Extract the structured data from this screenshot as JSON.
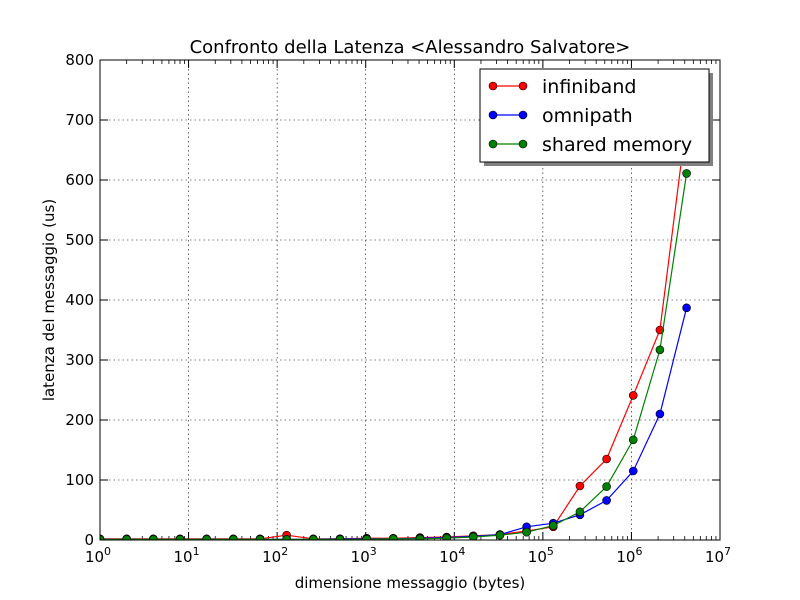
{
  "chart_data": {
    "type": "line",
    "title": "Confronto della Latenza <Alessandro Salvatore>",
    "xlabel": "dimensione messaggio (bytes)",
    "ylabel": "latenza del messaggio (us)",
    "xscale": "log",
    "xlim": [
      1,
      10000000
    ],
    "ylim": [
      0,
      800
    ],
    "grid": true,
    "legend_position": "top-right",
    "x_ticks": [
      {
        "base": "10",
        "exp": "0"
      },
      {
        "base": "10",
        "exp": "1"
      },
      {
        "base": "10",
        "exp": "2"
      },
      {
        "base": "10",
        "exp": "3"
      },
      {
        "base": "10",
        "exp": "4"
      },
      {
        "base": "10",
        "exp": "5"
      },
      {
        "base": "10",
        "exp": "6"
      },
      {
        "base": "10",
        "exp": "7"
      }
    ],
    "y_ticks": [
      "0",
      "100",
      "200",
      "300",
      "400",
      "500",
      "600",
      "700",
      "800"
    ],
    "x": [
      1,
      2,
      4,
      8,
      16,
      32,
      64,
      128,
      256,
      512,
      1024,
      2048,
      4096,
      8192,
      16384,
      32768,
      65536,
      131072,
      262144,
      524288,
      1048576,
      2097152,
      4194304
    ],
    "series": [
      {
        "name": "infiniband",
        "color": "#ff0000",
        "values": [
          2,
          2,
          2,
          2,
          2,
          2,
          2,
          8,
          2,
          2,
          3,
          3,
          4,
          5,
          7,
          9,
          15,
          22,
          90,
          135,
          241,
          350,
          700
        ]
      },
      {
        "name": "omnipath",
        "color": "#0000ff",
        "values": [
          1,
          1,
          1,
          1,
          1,
          1,
          1,
          1,
          1,
          2,
          2,
          2,
          3,
          4,
          6,
          9,
          22,
          28,
          42,
          66,
          115,
          210,
          387
        ]
      },
      {
        "name": "shared memory",
        "color": "#008000",
        "values": [
          1,
          1,
          1,
          1,
          1,
          1,
          1,
          1,
          1,
          1,
          1,
          2,
          2,
          3,
          5,
          8,
          13,
          24,
          47,
          89,
          167,
          317,
          611
        ]
      }
    ]
  }
}
